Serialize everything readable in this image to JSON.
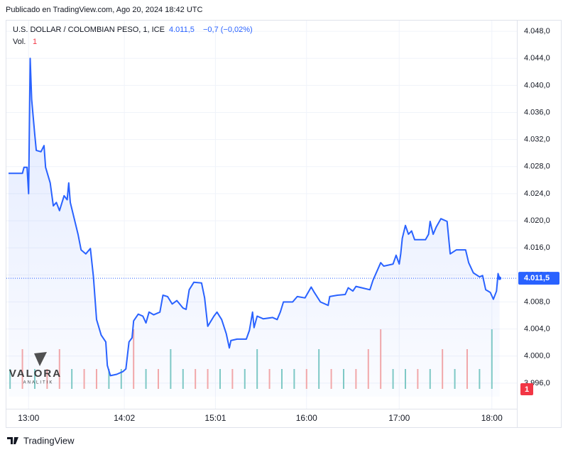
{
  "header": {
    "published": "Publicado en TradingView.com, Ago 20, 2024 18:42 UTC"
  },
  "footer": {
    "brand": "TradingView"
  },
  "watermark": {
    "name": "VALORA",
    "sub": "ANALITIK"
  },
  "chart_data": {
    "type": "line",
    "title": "U.S. DOLLAR / COLOMBIAN PESO, 1, ICE",
    "last_value": 4011.5,
    "last_label": "4.011,5",
    "change_label": "−0,7 (−0,02%)",
    "color": "#2962ff",
    "grid": true,
    "x": [
      "12:47",
      "12:56",
      "12:57",
      "12:59",
      "13:00",
      "13:01",
      "13:02",
      "13:04",
      "13:05",
      "13:08",
      "13:10",
      "13:11",
      "13:14",
      "13:16",
      "13:18",
      "13:20",
      "13:23",
      "13:25",
      "13:26",
      "13:27",
      "13:30",
      "13:32",
      "13:34",
      "13:37",
      "13:40",
      "13:42",
      "13:44",
      "13:47",
      "13:50",
      "13:51",
      "13:53",
      "13:57",
      "14:01",
      "14:03",
      "14:05",
      "14:07",
      "14:08",
      "14:11",
      "14:14",
      "14:16",
      "14:18",
      "14:21",
      "14:25",
      "14:27",
      "14:30",
      "14:33",
      "14:36",
      "14:40",
      "14:42",
      "14:44",
      "14:47",
      "14:52",
      "14:54",
      "14:56",
      "15:00",
      "15:02",
      "15:05",
      "15:08",
      "15:10",
      "15:11",
      "15:15",
      "15:21",
      "15:23",
      "15:25",
      "15:26",
      "15:28",
      "15:32",
      "15:38",
      "15:41",
      "15:43",
      "15:45",
      "15:51",
      "15:54",
      "15:59",
      "16:03",
      "16:05",
      "16:09",
      "16:14",
      "16:15",
      "16:20",
      "16:25",
      "16:27",
      "16:30",
      "16:32",
      "16:41",
      "16:43",
      "16:48",
      "16:50",
      "16:56",
      "16:58",
      "17:00",
      "17:01",
      "17:02",
      "17:04",
      "17:06",
      "17:08",
      "17:10",
      "17:17",
      "17:19",
      "17:20",
      "17:22",
      "17:24",
      "17:27",
      "17:31",
      "17:33",
      "17:37",
      "17:43",
      "17:45",
      "17:48",
      "17:52",
      "17:54",
      "17:56",
      "17:59",
      "18:01",
      "18:03",
      "18:04",
      "18:05"
    ],
    "values": [
      4027.0,
      4027.0,
      4027.9,
      4027.9,
      4024.0,
      4044.0,
      4037.9,
      4032.7,
      4030.4,
      4030.2,
      4031.1,
      4027.9,
      4025.6,
      4022.2,
      4022.7,
      4021.5,
      4023.7,
      4023.1,
      4025.6,
      4022.7,
      4019.9,
      4018.0,
      4015.7,
      4015.1,
      4015.9,
      4011.7,
      4005.4,
      4003.1,
      4002.1,
      3998.6,
      3997.1,
      3997.3,
      3997.7,
      3998.1,
      4002.1,
      4002.7,
      4005.2,
      4006.2,
      4005.9,
      4004.9,
      4006.5,
      4006.1,
      4006.5,
      4009.0,
      4008.8,
      4007.7,
      4008.2,
      4007.1,
      4006.9,
      4009.8,
      4010.9,
      4010.8,
      4008.6,
      4004.4,
      4005.9,
      4006.5,
      4005.4,
      4003.3,
      4001.2,
      4002.3,
      4002.5,
      4002.5,
      4003.8,
      4006.5,
      4004.2,
      4005.9,
      4005.5,
      4005.7,
      4005.4,
      4006.5,
      4008.0,
      4008.0,
      4008.8,
      4008.6,
      4010.2,
      4009.4,
      4008.0,
      4007.5,
      4008.8,
      4009.0,
      4009.1,
      4010.1,
      4009.6,
      4010.3,
      4009.8,
      4011.2,
      4013.8,
      4013.3,
      4013.6,
      4014.9,
      4013.6,
      4015.1,
      4017.4,
      4019.3,
      4018.0,
      4018.5,
      4017.2,
      4017.2,
      4018.0,
      4019.9,
      4018.0,
      4019.1,
      4020.3,
      4019.9,
      4015.1,
      4015.7,
      4015.7,
      4013.8,
      4012.3,
      4011.7,
      4011.9,
      4009.8,
      4009.4,
      4008.4,
      4009.6,
      4012.2,
      4011.5
    ],
    "xlim": [
      "12:47",
      "18:07"
    ],
    "xticks": [
      "13:00",
      "14:02",
      "15:01",
      "16:00",
      "17:00",
      "18:00"
    ],
    "ylim": [
      3994.0,
      4050.0
    ],
    "yticks": [
      {
        "value": 3996,
        "label": "3.996,0"
      },
      {
        "value": 4000,
        "label": "4.000,0"
      },
      {
        "value": 4004,
        "label": "4.004,0"
      },
      {
        "value": 4008,
        "label": "4.008,0"
      },
      {
        "value": 4012,
        "label": "4.012,0"
      },
      {
        "value": 4016,
        "label": "4.016,0"
      },
      {
        "value": 4020,
        "label": "4.020,0"
      },
      {
        "value": 4024,
        "label": "4.024,0"
      },
      {
        "value": 4028,
        "label": "4.028,0"
      },
      {
        "value": 4032,
        "label": "4.032,0"
      },
      {
        "value": 4036,
        "label": "4.036,0"
      },
      {
        "value": 4040,
        "label": "4.040,0"
      },
      {
        "value": 4044,
        "label": "4.044,0"
      },
      {
        "value": 4048,
        "label": "4.048,0"
      }
    ],
    "volume": {
      "name": "Vol.",
      "last": 1,
      "ylim": [
        0,
        4
      ],
      "x": [
        "12:48",
        "12:56",
        "13:04",
        "13:12",
        "13:20",
        "13:28",
        "13:36",
        "13:44",
        "13:52",
        "14:00",
        "14:08",
        "14:16",
        "14:24",
        "14:32",
        "14:40",
        "14:48",
        "14:56",
        "15:04",
        "15:12",
        "15:20",
        "15:28",
        "15:36",
        "15:44",
        "15:52",
        "16:00",
        "16:08",
        "16:16",
        "16:24",
        "16:32",
        "16:40",
        "16:48",
        "16:56",
        "17:04",
        "17:12",
        "17:20",
        "17:28",
        "17:36",
        "17:44",
        "17:52",
        "18:00"
      ],
      "values": [
        1,
        2,
        1,
        1,
        2,
        1,
        1,
        1,
        1,
        1,
        3,
        1,
        1,
        2,
        1,
        1,
        1,
        1,
        1,
        1,
        2,
        1,
        1,
        1,
        1,
        2,
        1,
        1,
        1,
        2,
        3,
        1,
        1,
        1,
        1,
        2,
        1,
        2,
        1,
        3
      ],
      "colors": [
        "#80cbc4",
        "#f7a9a7",
        "#80cbc4",
        "#f7a9a7",
        "#f7a9a7",
        "#80cbc4",
        "#f7a9a7",
        "#f7a9a7",
        "#80cbc4",
        "#80cbc4",
        "#f7a9a7",
        "#80cbc4",
        "#f7a9a7",
        "#80cbc4",
        "#80cbc4",
        "#f7a9a7",
        "#f7a9a7",
        "#80cbc4",
        "#f7a9a7",
        "#80cbc4",
        "#80cbc4",
        "#f7a9a7",
        "#80cbc4",
        "#80cbc4",
        "#f7a9a7",
        "#80cbc4",
        "#f7a9a7",
        "#80cbc4",
        "#f7a9a7",
        "#f7a9a7",
        "#f7a9a7",
        "#80cbc4",
        "#80cbc4",
        "#f7a9a7",
        "#80cbc4",
        "#f7a9a7",
        "#80cbc4",
        "#f7a9a7",
        "#80cbc4",
        "#80cbc4"
      ]
    }
  }
}
